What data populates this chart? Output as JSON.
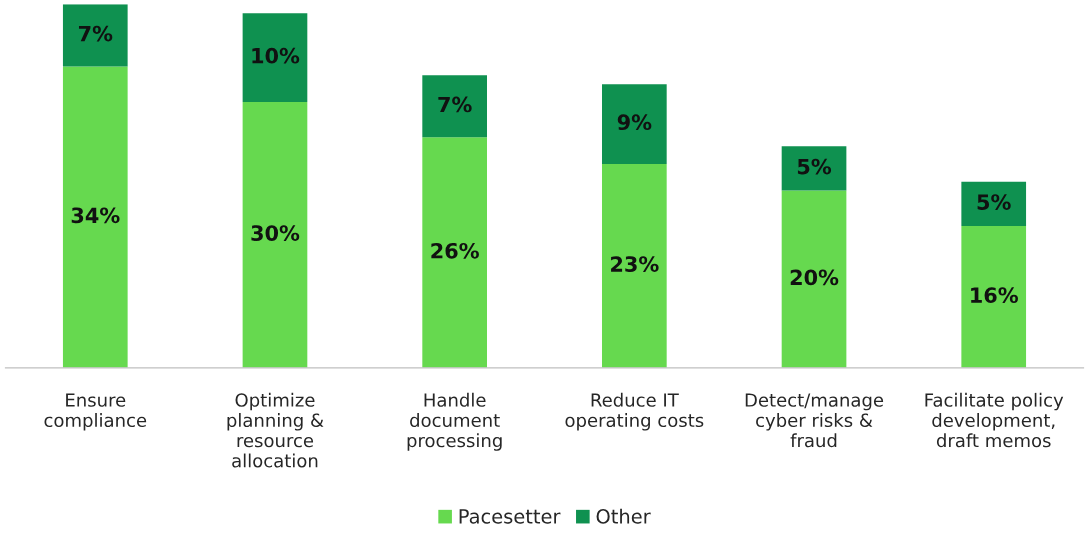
{
  "chart_data": {
    "type": "bar",
    "stacked": true,
    "categories": [
      "Ensure\ncompliance",
      "Optimize\nplanning &\nresource\nallocation",
      "Handle\ndocument\nprocessing",
      "Reduce IT\noperating costs",
      "Detect/manage\ncyber risks &\nfraud",
      "Facilitate policy\ndevelopment,\ndraft memos"
    ],
    "series": [
      {
        "name": "Pacesetter",
        "color": "#66d94f",
        "values": [
          34,
          30,
          26,
          23,
          20,
          16
        ],
        "value_labels": [
          "34%",
          "30%",
          "26%",
          "23%",
          "20%",
          "16%"
        ]
      },
      {
        "name": "Other",
        "color": "#0f9150",
        "values": [
          7,
          10,
          7,
          9,
          5,
          5
        ],
        "value_labels": [
          "7%",
          "10%",
          "7%",
          "9%",
          "5%",
          "5%"
        ]
      }
    ],
    "legend": "bottom",
    "grid": false,
    "tick_labels": "x"
  }
}
